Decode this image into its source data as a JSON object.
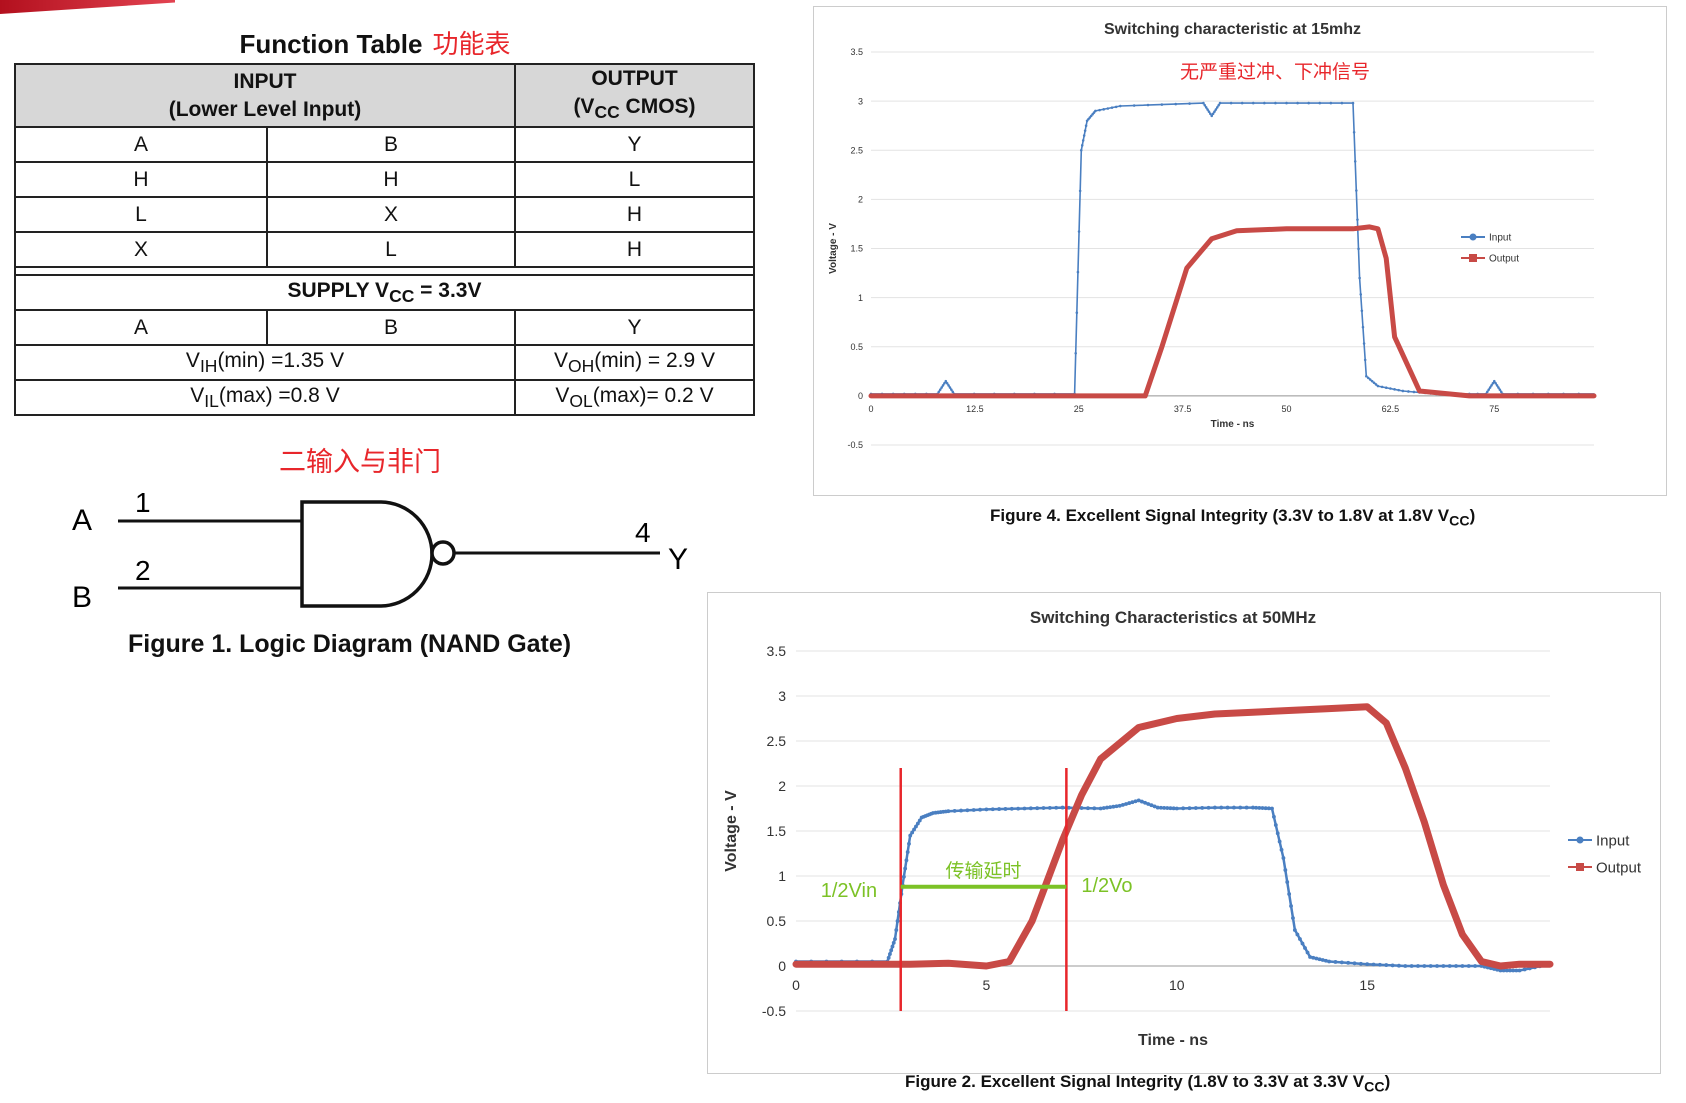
{
  "function_table": {
    "title": "Function Table",
    "title_cn": "功能表",
    "input_header_line1": "INPUT",
    "input_header_line2": "(Lower Level Input)",
    "output_header_line1": "OUTPUT",
    "output_header_line2_prefix": "(V",
    "output_header_line2_sub": "CC",
    "output_header_line2_suffix": " CMOS)",
    "rows": [
      [
        "A",
        "B",
        "Y"
      ],
      [
        "H",
        "H",
        "L"
      ],
      [
        "L",
        "X",
        "H"
      ],
      [
        "X",
        "L",
        "H"
      ]
    ],
    "supply_prefix": "SUPPLY V",
    "supply_sub": "CC",
    "supply_suffix": " = 3.3V",
    "supply_cols": [
      "A",
      "B",
      "Y"
    ],
    "vih": {
      "pre": "V",
      "sub": "IH",
      "post": "(min) =1.35 V"
    },
    "voh": {
      "pre": "V",
      "sub": "OH",
      "post": "(min) = 2.9 V"
    },
    "vil": {
      "pre": "V",
      "sub": "IL",
      "post": "(max) =0.8 V"
    },
    "vol": {
      "pre": "V",
      "sub": "OL",
      "post": "(max)= 0.2 V"
    }
  },
  "logic_diagram": {
    "label_cn": "二输入与非门",
    "input_a": "A",
    "input_b": "B",
    "pin_a": "1",
    "pin_b": "2",
    "pin_out": "4",
    "output": "Y",
    "caption": "Figure 1.  Logic Diagram (NAND Gate)"
  },
  "chart_data": [
    {
      "type": "line",
      "title": "Switching characteristic at 15mhz",
      "annotation_cn": "无严重过冲、下冲信号",
      "xlabel": "Time - ns",
      "ylabel": "Voltage - V",
      "xticks": [
        "0",
        "12.5",
        "25",
        "37.5",
        "50",
        "62.5",
        "75"
      ],
      "yticks": [
        "-0.5",
        "0",
        "0.5",
        "1",
        "1.5",
        "2",
        "2.5",
        "3",
        "3.5"
      ],
      "xlim": [
        0,
        87
      ],
      "ylim": [
        -0.5,
        3.5
      ],
      "legend_position": "right",
      "series": [
        {
          "name": "Input",
          "color": "#4a7fc1",
          "x": [
            0,
            8,
            9,
            10,
            24.5,
            25.3,
            26,
            27,
            30,
            40,
            41,
            42,
            50,
            58,
            58.8,
            59.6,
            61,
            64,
            68,
            74,
            75,
            76,
            87
          ],
          "y": [
            0.02,
            0.02,
            0.15,
            0.02,
            0.02,
            2.5,
            2.8,
            2.9,
            2.95,
            2.98,
            2.85,
            2.98,
            2.98,
            2.98,
            1.2,
            0.2,
            0.1,
            0.05,
            0.02,
            0.02,
            0.15,
            0.02,
            0.02
          ]
        },
        {
          "name": "Output",
          "color": "#c84a46",
          "x": [
            0,
            24,
            33,
            35,
            38,
            41,
            44,
            50,
            58,
            60,
            61,
            62,
            63,
            66,
            72,
            87
          ],
          "y": [
            0.0,
            0.0,
            0.0,
            0.5,
            1.3,
            1.6,
            1.68,
            1.7,
            1.7,
            1.72,
            1.7,
            1.4,
            0.6,
            0.05,
            0.0,
            0.0
          ]
        }
      ],
      "caption": {
        "pre": "Figure 4.  Excellent Signal Integrity (3.3V to 1.8V at 1.8V V",
        "sub": "CC",
        "post": ")"
      }
    },
    {
      "type": "line",
      "title": "Switching Characteristics at 50MHz",
      "xlabel": "Time - ns",
      "ylabel": "Voltage - V",
      "xticks": [
        "0",
        "5",
        "10",
        "15"
      ],
      "yticks": [
        "-0.5",
        "0",
        "0.5",
        "1",
        "1.5",
        "2",
        "2.5",
        "3",
        "3.5"
      ],
      "xlim": [
        0,
        19.8
      ],
      "ylim": [
        -0.5,
        3.5
      ],
      "legend_position": "right",
      "annotations": {
        "half_vin": "1/2Vin",
        "half_vo": "1/2Vo",
        "delay_cn": "传输延时"
      },
      "markers_x": [
        2.75,
        7.1
      ],
      "delay_level": 0.88,
      "series": [
        {
          "name": "Input",
          "color": "#4a7fc1",
          "x": [
            0,
            2.4,
            2.6,
            2.8,
            3.0,
            3.3,
            3.6,
            4.0,
            5,
            6,
            7,
            8,
            8.5,
            9,
            9.5,
            10,
            11,
            12,
            12.5,
            12.8,
            13.1,
            13.5,
            14,
            15,
            16,
            17,
            18,
            18.5,
            19,
            19.8
          ],
          "y": [
            0.05,
            0.05,
            0.3,
            0.9,
            1.45,
            1.65,
            1.7,
            1.72,
            1.74,
            1.75,
            1.76,
            1.75,
            1.78,
            1.84,
            1.76,
            1.75,
            1.76,
            1.76,
            1.75,
            1.2,
            0.4,
            0.1,
            0.05,
            0.02,
            0.0,
            0.0,
            0.0,
            -0.05,
            -0.05,
            0.02
          ]
        },
        {
          "name": "Output",
          "color": "#c84a46",
          "x": [
            0,
            2,
            3,
            4,
            5,
            5.6,
            6.2,
            7,
            7.5,
            8,
            9,
            10,
            11,
            12,
            13,
            14,
            15,
            15.5,
            16,
            16.5,
            17,
            17.5,
            18,
            18.5,
            19,
            19.8
          ],
          "y": [
            0.02,
            0.02,
            0.02,
            0.03,
            0.0,
            0.05,
            0.5,
            1.4,
            1.9,
            2.3,
            2.65,
            2.75,
            2.8,
            2.82,
            2.84,
            2.86,
            2.88,
            2.7,
            2.2,
            1.6,
            0.9,
            0.35,
            0.05,
            0.0,
            0.02,
            0.02
          ]
        }
      ],
      "caption": {
        "pre": "Figure 2.  Excellent Signal Integrity (1.8V to 3.3V at 3.3V V",
        "sub": "CC",
        "post": ")"
      }
    }
  ]
}
